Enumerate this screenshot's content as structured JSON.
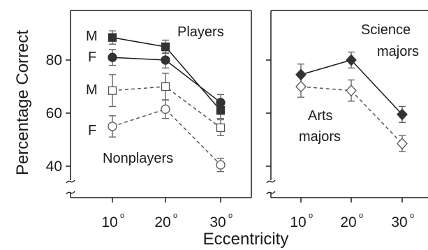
{
  "figure": {
    "ylabel": "Percentage Correct",
    "xlabel": "Eccentricity",
    "y_ticks": [
      "40",
      "60",
      "80"
    ],
    "x_ticks": [
      "10",
      "20",
      "30"
    ],
    "degree_mark": "o",
    "colors": {
      "ink": "#1a1a1a",
      "filled_marker": "#333333",
      "open_marker": "#ffffff",
      "error_bar": "#666666"
    }
  },
  "chart_data": [
    {
      "type": "line",
      "panel": "left",
      "xlabel": "Eccentricity",
      "ylabel": "Percentage Correct",
      "x": [
        10,
        20,
        30
      ],
      "x_unit": "degrees",
      "ylim": [
        36,
        96
      ],
      "y_axis_break": true,
      "grid": false,
      "annotations": {
        "group_top": "Players",
        "group_bottom": "Nonplayers",
        "male": "M",
        "female": "F"
      },
      "series": [
        {
          "group": "Players",
          "sex": "M",
          "marker": "filled-square",
          "line": "solid",
          "values": [
            88.5,
            85,
            61
          ],
          "errors": [
            2.5,
            2.5,
            3
          ]
        },
        {
          "group": "Players",
          "sex": "F",
          "marker": "filled-circle",
          "line": "solid",
          "values": [
            81,
            80,
            64
          ],
          "errors": [
            3,
            3,
            3
          ]
        },
        {
          "group": "Nonplayers",
          "sex": "M",
          "marker": "open-square",
          "line": "dashed",
          "values": [
            68.5,
            70,
            54.5
          ],
          "errors": [
            6,
            5,
            3
          ]
        },
        {
          "group": "Nonplayers",
          "sex": "F",
          "marker": "open-circle",
          "line": "dashed",
          "values": [
            55,
            61.5,
            40.5
          ],
          "errors": [
            4,
            3.5,
            2.5
          ]
        }
      ]
    },
    {
      "type": "line",
      "panel": "right",
      "xlabel": "Eccentricity",
      "x": [
        10,
        20,
        30
      ],
      "x_unit": "degrees",
      "ylim": [
        36,
        96
      ],
      "y_axis_break": true,
      "grid": false,
      "annotations": {
        "group_top_line1": "Science",
        "group_top_line2": "majors",
        "group_bottom_line1": "Arts",
        "group_bottom_line2": "majors"
      },
      "series": [
        {
          "group": "Science majors",
          "marker": "filled-diamond",
          "line": "solid",
          "values": [
            74.5,
            80,
            59.5
          ],
          "errors": [
            4,
            3,
            3
          ]
        },
        {
          "group": "Arts majors",
          "marker": "open-diamond",
          "line": "dashed",
          "values": [
            70,
            68.5,
            48.5
          ],
          "errors": [
            4,
            4,
            3
          ]
        }
      ]
    }
  ]
}
